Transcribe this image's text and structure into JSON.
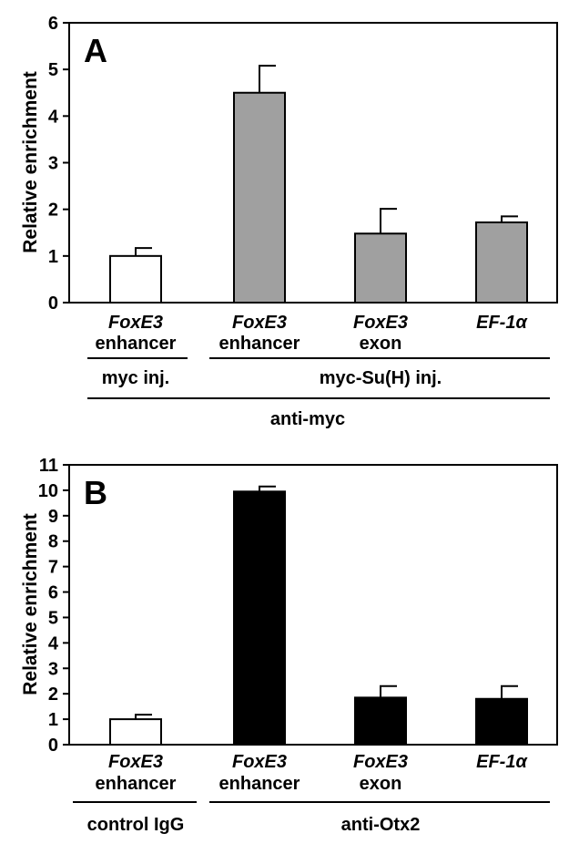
{
  "chart_data": [
    {
      "type": "bar",
      "panel_label": "A",
      "ylabel": "Relative enrichment",
      "ylim": [
        0,
        6
      ],
      "yticks": [
        "0",
        "1",
        "2",
        "3",
        "4",
        "5",
        "6"
      ],
      "categories": [
        {
          "line1": "FoxE3",
          "line2": "enhancer",
          "value": 1.0,
          "error": 0.17,
          "color": "#ffffff"
        },
        {
          "line1": "FoxE3",
          "line2": "enhancer",
          "value": 4.5,
          "error": 0.58,
          "color": "#a0a0a0"
        },
        {
          "line1": "FoxE3",
          "line2": "exon",
          "value": 1.48,
          "error": 0.53,
          "color": "#a0a0a0"
        },
        {
          "line1": "EF-1α",
          "line2": "",
          "value": 1.72,
          "error": 0.13,
          "color": "#a0a0a0"
        }
      ],
      "groups": [
        {
          "label": "myc inj.",
          "from": 0,
          "to": 0
        },
        {
          "label": "myc-Su(H) inj.",
          "from": 1,
          "to": 3
        }
      ],
      "overall_label": "anti-myc"
    },
    {
      "type": "bar",
      "panel_label": "B",
      "ylabel": "Relative enrichment",
      "ylim": [
        0,
        11
      ],
      "yticks": [
        "0",
        "1",
        "2",
        "3",
        "4",
        "5",
        "6",
        "7",
        "8",
        "9",
        "10",
        "11"
      ],
      "categories": [
        {
          "line1": "FoxE3",
          "line2": "enhancer",
          "value": 1.0,
          "error": 0.18,
          "color": "#ffffff"
        },
        {
          "line1": "FoxE3",
          "line2": "enhancer",
          "value": 9.95,
          "error": 0.2,
          "color": "#000000"
        },
        {
          "line1": "FoxE3",
          "line2": "exon",
          "value": 1.85,
          "error": 0.45,
          "color": "#000000"
        },
        {
          "line1": "EF-1α",
          "line2": "",
          "value": 1.8,
          "error": 0.5,
          "color": "#000000"
        }
      ],
      "groups": [
        {
          "label": "control IgG",
          "from": 0,
          "to": 0
        },
        {
          "label": "anti-Otx2",
          "from": 1,
          "to": 3
        }
      ]
    }
  ]
}
